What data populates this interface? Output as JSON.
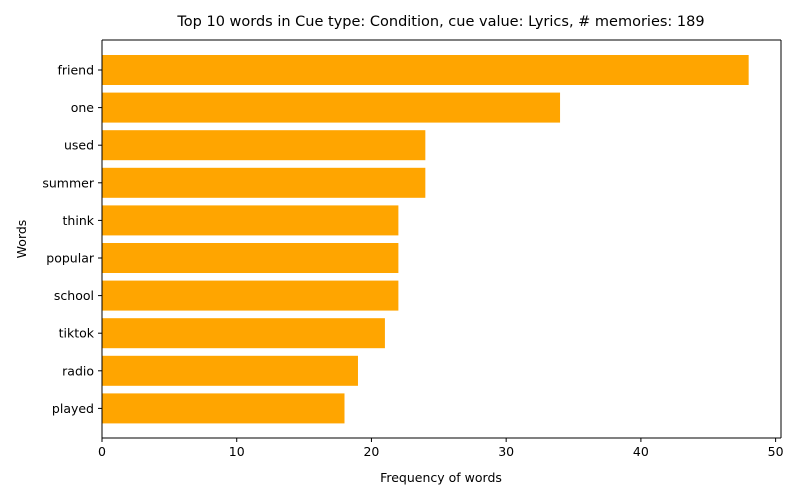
{
  "chart_data": {
    "type": "bar",
    "orientation": "horizontal",
    "title": "Top 10 words in Cue type: Condition, cue value: Lyrics, # memories: 189",
    "xlabel": "Frequency of words",
    "ylabel": "Words",
    "categories": [
      "friend",
      "one",
      "used",
      "summer",
      "think",
      "popular",
      "school",
      "tiktok",
      "radio",
      "played"
    ],
    "values": [
      48,
      34,
      24,
      24,
      22,
      22,
      22,
      21,
      19,
      18
    ],
    "xlim": [
      0,
      50.4
    ],
    "xticks": [
      0,
      10,
      20,
      30,
      40,
      50
    ],
    "bar_color": "#ffa500",
    "grid": false,
    "legend": "none"
  }
}
